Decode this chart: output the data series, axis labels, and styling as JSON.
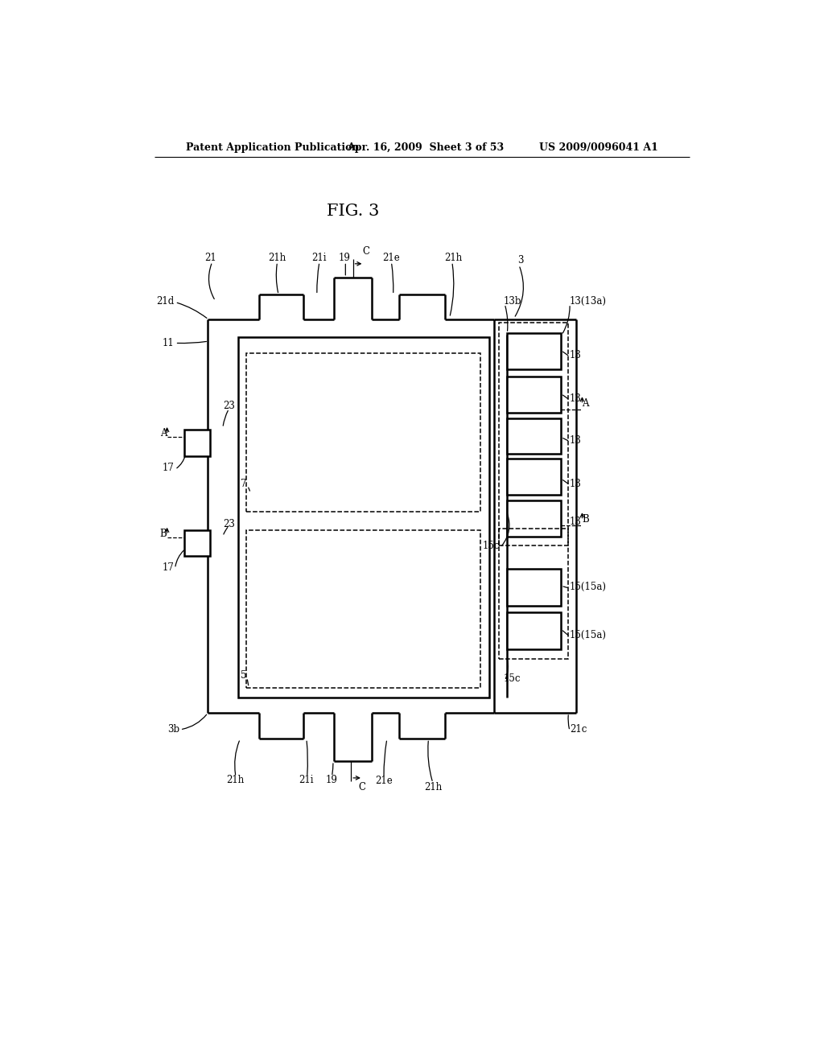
{
  "bg_color": "#ffffff",
  "title": "FIG. 3",
  "header_left": "Patent Application Publication",
  "header_center": "Apr. 16, 2009  Sheet 3 of 53",
  "header_right": "US 2009/0096041 A1",
  "fig_width": 10.24,
  "fig_height": 13.2
}
